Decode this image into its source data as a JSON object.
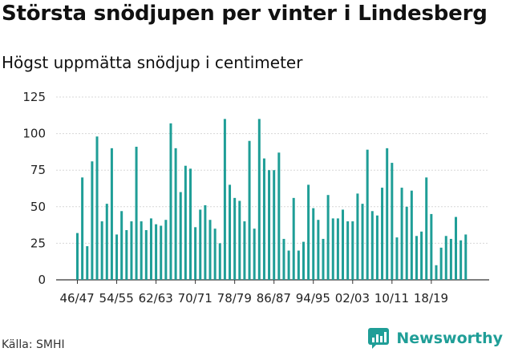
{
  "header": {
    "title": "Största snödjupen per vinter i Lindesberg",
    "subtitle": "Högst uppmätta snödjup i centimeter"
  },
  "footer": {
    "source": "Källa: SMHI",
    "brand": "Newsworthy"
  },
  "colors": {
    "bar": "#1f9e97",
    "grid": "#d7d7d7",
    "brand": "#1f9e97"
  },
  "icons": {
    "brand_logo": "newsworthy-logo-icon"
  },
  "chart_data": {
    "type": "bar",
    "title": "Största snödjupen per vinter i Lindesberg",
    "subtitle": "Högst uppmätta snödjup i centimeter",
    "xlabel": "",
    "ylabel": "",
    "ylim": [
      0,
      125
    ],
    "yticks": [
      0,
      25,
      50,
      75,
      100,
      125
    ],
    "grid": "horizontal",
    "legend": "none",
    "xtick_labels": [
      {
        "index": 0,
        "label": "46/47"
      },
      {
        "index": 8,
        "label": "54/55"
      },
      {
        "index": 16,
        "label": "62/63"
      },
      {
        "index": 24,
        "label": "70/71"
      },
      {
        "index": 32,
        "label": "78/79"
      },
      {
        "index": 40,
        "label": "86/87"
      },
      {
        "index": 48,
        "label": "94/95"
      },
      {
        "index": 56,
        "label": "02/03"
      },
      {
        "index": 64,
        "label": "10/11"
      },
      {
        "index": 72,
        "label": "18/19"
      }
    ],
    "values": [
      32,
      70,
      23,
      81,
      98,
      40,
      52,
      90,
      31,
      47,
      34,
      40,
      91,
      40,
      34,
      42,
      38,
      37,
      41,
      107,
      90,
      60,
      78,
      76,
      36,
      48,
      51,
      41,
      35,
      25,
      110,
      65,
      56,
      54,
      40,
      95,
      35,
      110,
      83,
      75,
      75,
      87,
      28,
      20,
      56,
      20,
      26,
      65,
      49,
      41,
      28,
      58,
      42,
      42,
      48,
      40,
      40,
      59,
      52,
      89,
      47,
      44,
      63,
      90,
      80,
      29,
      63,
      50,
      61,
      30,
      33,
      70,
      45,
      10,
      22,
      30,
      28,
      43,
      27,
      31
    ]
  }
}
